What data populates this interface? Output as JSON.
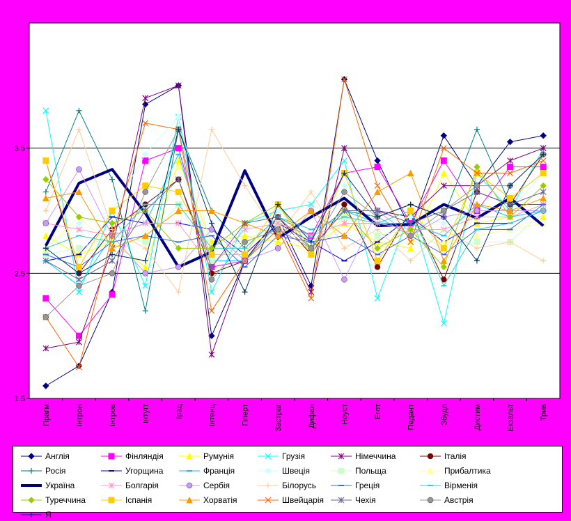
{
  "chart_data": {
    "type": "line",
    "title": "",
    "xlabel": "",
    "ylabel": "",
    "ylim": [
      1.5,
      4.5
    ],
    "yticks": [
      "1.5",
      "2.5",
      "3.5"
    ],
    "grid": "horizontal",
    "legend_position": "bottom",
    "categories": [
      "Прагм",
      "Інтрон",
      "Інтров",
      "Інтуїт",
      "Ірац",
      "Інтенц",
      "Гіперт",
      "Застраг",
      "Дифан",
      "Неуст",
      "Егот",
      "Педант",
      "Збудл",
      "Дистим",
      "Екзальт",
      "Трив"
    ],
    "series": [
      {
        "name": "Англія",
        "color": "#000080",
        "width": 1,
        "marker": "diamond",
        "values": [
          1.6,
          1.76,
          2.35,
          3.85,
          4.0,
          2.0,
          2.6,
          2.95,
          2.4,
          4.05,
          3.4,
          2.85,
          3.6,
          3.2,
          3.55,
          3.6
        ]
      },
      {
        "name": "Фінляндія",
        "color": "#ff00ff",
        "width": 1,
        "marker": "square",
        "values": [
          2.3,
          2.0,
          2.33,
          3.4,
          3.5,
          2.55,
          2.6,
          2.9,
          2.8,
          3.3,
          3.35,
          2.9,
          3.4,
          3.0,
          3.35,
          3.35
        ]
      },
      {
        "name": "Румунія",
        "color": "#ffff00",
        "width": 1,
        "marker": "triangle",
        "values": [
          2.8,
          2.65,
          2.75,
          2.55,
          3.4,
          2.75,
          2.8,
          2.75,
          2.7,
          2.9,
          2.75,
          2.7,
          3.3,
          2.9,
          2.95,
          2.95
        ]
      },
      {
        "name": "Грузія",
        "color": "#00ffff",
        "width": 1,
        "marker": "x",
        "values": [
          3.8,
          2.35,
          3.0,
          2.4,
          3.75,
          2.35,
          2.9,
          3.0,
          3.05,
          3.4,
          2.3,
          3.0,
          2.1,
          3.3,
          3.0,
          3.5
        ]
      },
      {
        "name": "Німеччина",
        "color": "#800080",
        "width": 1,
        "marker": "star",
        "values": [
          1.9,
          1.95,
          2.7,
          3.9,
          4.0,
          1.85,
          2.6,
          2.9,
          2.35,
          3.5,
          3.0,
          2.95,
          3.2,
          3.2,
          3.4,
          3.5
        ]
      },
      {
        "name": "Італія",
        "color": "#800000",
        "width": 1,
        "marker": "circle",
        "values": [
          3.4,
          2.5,
          2.85,
          3.05,
          3.25,
          2.5,
          2.6,
          2.95,
          2.65,
          3.05,
          2.55,
          3.0,
          2.45,
          3.15,
          3.05,
          3.45
        ]
      },
      {
        "name": "Росія",
        "color": "#008080",
        "width": 1,
        "marker": "plus",
        "values": [
          3.15,
          3.8,
          3.25,
          2.2,
          3.65,
          3.0,
          2.7,
          2.95,
          2.8,
          3.0,
          2.95,
          3.05,
          2.95,
          3.65,
          3.05,
          3.05
        ]
      },
      {
        "name": "Угорщина",
        "color": "#0000ff",
        "width": 1,
        "marker": "dash",
        "values": [
          2.6,
          2.65,
          2.95,
          2.9,
          2.9,
          2.85,
          2.65,
          2.9,
          2.75,
          2.6,
          2.75,
          2.95,
          2.75,
          2.9,
          2.9,
          3.0
        ]
      },
      {
        "name": "Франція",
        "color": "#00ccff",
        "width": 1,
        "marker": "dash",
        "values": [
          2.6,
          2.4,
          2.8,
          2.9,
          3.45,
          2.6,
          2.6,
          2.9,
          2.8,
          3.0,
          2.9,
          2.9,
          2.8,
          3.05,
          2.95,
          3.0
        ]
      },
      {
        "name": "Швеція",
        "color": "#ccffff",
        "width": 1,
        "marker": "diamond",
        "values": [
          2.7,
          2.9,
          3.0,
          3.45,
          3.75,
          2.7,
          2.85,
          3.0,
          2.75,
          3.2,
          2.9,
          2.95,
          2.9,
          3.0,
          3.0,
          3.3
        ]
      },
      {
        "name": "Польща",
        "color": "#ccffcc",
        "width": 1,
        "marker": "square",
        "values": [
          2.65,
          2.7,
          2.8,
          2.75,
          3.05,
          2.6,
          2.75,
          2.9,
          2.7,
          2.95,
          2.8,
          2.85,
          2.7,
          2.75,
          2.75,
          3.0
        ]
      },
      {
        "name": "Прибалтика",
        "color": "#ffff99",
        "width": 1,
        "marker": "triangle",
        "values": [
          2.7,
          2.95,
          2.7,
          2.8,
          3.35,
          2.7,
          2.75,
          2.8,
          2.65,
          3.0,
          2.7,
          2.75,
          2.75,
          2.8,
          2.85,
          2.9
        ]
      },
      {
        "name": "Україна",
        "color": "#000080",
        "width": 4,
        "marker": "none",
        "values": [
          2.72,
          3.22,
          3.33,
          2.98,
          2.55,
          2.67,
          3.32,
          2.78,
          2.95,
          3.1,
          2.88,
          2.89,
          3.05,
          2.94,
          3.1,
          2.88
        ]
      },
      {
        "name": "Болгарія",
        "color": "#ff99cc",
        "width": 1,
        "marker": "star",
        "values": [
          2.9,
          2.85,
          2.8,
          2.9,
          2.9,
          2.55,
          2.85,
          2.9,
          2.8,
          2.9,
          2.9,
          2.85,
          2.85,
          2.95,
          2.95,
          3.05
        ]
      },
      {
        "name": "Сербія",
        "color": "#cc99ff",
        "width": 1,
        "marker": "circle",
        "values": [
          2.9,
          3.33,
          2.8,
          2.5,
          2.55,
          2.85,
          2.6,
          2.7,
          3.0,
          2.45,
          3.0,
          2.8,
          2.95,
          3.0,
          3.0,
          3.0
        ]
      },
      {
        "name": "Білорусь",
        "color": "#ffcc99",
        "width": 1,
        "marker": "plus",
        "values": [
          3.0,
          3.65,
          2.85,
          2.7,
          2.35,
          3.65,
          3.2,
          2.8,
          3.15,
          2.7,
          2.85,
          2.6,
          2.85,
          2.7,
          2.75,
          2.6
        ]
      },
      {
        "name": "Греція",
        "color": "#3366ff",
        "width": 1,
        "marker": "dash",
        "values": [
          2.65,
          2.55,
          2.75,
          2.8,
          2.75,
          2.8,
          2.55,
          2.8,
          2.75,
          2.8,
          2.65,
          2.8,
          2.65,
          2.85,
          2.85,
          3.05
        ]
      },
      {
        "name": "Вірменія",
        "color": "#33cccc",
        "width": 1,
        "marker": "dash",
        "values": [
          2.7,
          2.8,
          2.75,
          3.05,
          3.05,
          2.7,
          2.7,
          2.95,
          2.85,
          2.95,
          2.9,
          3.0,
          2.4,
          2.85,
          2.9,
          3.0
        ]
      },
      {
        "name": "Туреччина",
        "color": "#99cc00",
        "width": 1,
        "marker": "diamond",
        "values": [
          3.25,
          2.95,
          2.9,
          3.0,
          2.7,
          2.7,
          2.9,
          3.05,
          2.7,
          3.0,
          2.7,
          2.85,
          2.55,
          3.35,
          2.95,
          3.2
        ]
      },
      {
        "name": "Іспанія",
        "color": "#ffcc00",
        "width": 1,
        "marker": "square",
        "values": [
          3.4,
          2.55,
          3.0,
          3.2,
          3.15,
          2.65,
          2.65,
          3.05,
          2.65,
          3.3,
          2.6,
          3.0,
          2.7,
          3.3,
          3.1,
          3.3
        ]
      },
      {
        "name": "Хорватія",
        "color": "#ff9900",
        "width": 1,
        "marker": "triangle",
        "values": [
          3.1,
          3.15,
          2.7,
          2.8,
          3.0,
          3.0,
          2.9,
          2.8,
          3.0,
          2.8,
          3.15,
          3.3,
          2.6,
          3.05,
          3.0,
          3.1
        ]
      },
      {
        "name": "Швейцарія",
        "color": "#ff6600",
        "width": 1,
        "marker": "x",
        "values": [
          2.15,
          1.75,
          2.8,
          3.7,
          3.65,
          2.2,
          2.6,
          2.85,
          2.3,
          4.05,
          3.2,
          2.75,
          3.5,
          3.3,
          3.3,
          3.4
        ]
      },
      {
        "name": "Чехія",
        "color": "#666699",
        "width": 1,
        "marker": "star",
        "values": [
          2.6,
          2.45,
          2.6,
          3.0,
          3.25,
          2.55,
          2.9,
          2.95,
          2.7,
          3.0,
          3.0,
          2.9,
          3.0,
          3.15,
          3.05,
          3.15
        ]
      },
      {
        "name": "Австрія",
        "color": "#969696",
        "width": 1,
        "marker": "circle",
        "values": [
          2.15,
          2.4,
          2.5,
          3.15,
          3.65,
          2.45,
          2.75,
          2.85,
          2.7,
          3.15,
          2.95,
          2.8,
          3.0,
          3.2,
          3.2,
          3.45
        ]
      },
      {
        "name": "Я",
        "color": "#003366",
        "width": 1,
        "marker": "plus",
        "values": [
          2.7,
          2.5,
          2.65,
          2.6,
          3.65,
          2.9,
          2.35,
          3.05,
          2.75,
          3.3,
          2.95,
          3.05,
          2.95,
          2.6,
          3.2,
          3.45
        ]
      }
    ]
  }
}
